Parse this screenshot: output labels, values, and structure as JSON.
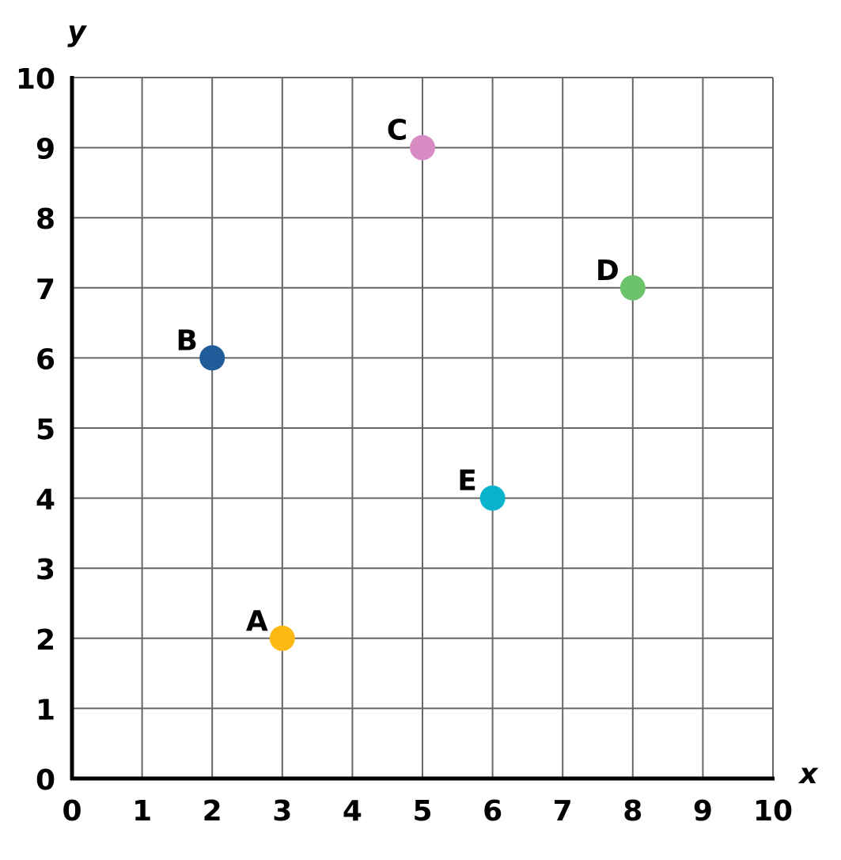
{
  "chart_data": {
    "type": "scatter",
    "x_label": "x",
    "y_label": "y",
    "xlim": [
      0,
      10
    ],
    "ylim": [
      0,
      10
    ],
    "xticks": [
      0,
      1,
      2,
      3,
      4,
      5,
      6,
      7,
      8,
      9,
      10
    ],
    "yticks": [
      0,
      1,
      2,
      3,
      4,
      5,
      6,
      7,
      8,
      9,
      10
    ],
    "grid": true,
    "series": [
      {
        "name": "A",
        "color": "#fdb913",
        "x": [
          3
        ],
        "values": [
          2
        ]
      },
      {
        "name": "B",
        "color": "#1f5c99",
        "x": [
          2
        ],
        "values": [
          6
        ]
      },
      {
        "name": "C",
        "color": "#d98cc4",
        "x": [
          5
        ],
        "values": [
          9
        ]
      },
      {
        "name": "D",
        "color": "#6cc46a",
        "x": [
          8
        ],
        "values": [
          7
        ]
      },
      {
        "name": "E",
        "color": "#0ab3cc",
        "x": [
          6
        ],
        "values": [
          4
        ]
      }
    ]
  }
}
